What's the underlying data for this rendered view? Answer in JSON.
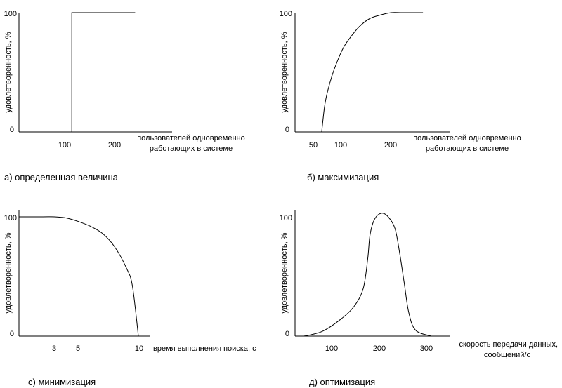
{
  "chart_data": [
    {
      "panel": "a",
      "type": "line",
      "title": "а) определенная величина",
      "xlabel": [
        "пользователей одновременно",
        "работающих в системе"
      ],
      "ylabel": "удовлетворенность, %",
      "xlim": [
        0,
        290
      ],
      "ylim": [
        0,
        100
      ],
      "xticks": [
        100,
        200
      ],
      "yticks": [
        0,
        100
      ],
      "series": [
        {
          "name": "satisfaction",
          "x": [
            100,
            100,
            220
          ],
          "y": [
            0,
            100,
            100
          ]
        }
      ]
    },
    {
      "panel": "b",
      "type": "line",
      "title": "б) максимизация",
      "xlabel": [
        "пользователей одновременно",
        "работающих в системе"
      ],
      "ylabel": "удовлетворенность, %",
      "xlim": [
        0,
        290
      ],
      "ylim": [
        0,
        100
      ],
      "xticks": [
        50,
        100,
        200
      ],
      "yticks": [
        0,
        100
      ],
      "series": [
        {
          "name": "satisfaction",
          "x": [
            50,
            55,
            60,
            70,
            80,
            90,
            100,
            120,
            140,
            160,
            180,
            200,
            220,
            240
          ],
          "y": [
            0,
            20,
            32,
            48,
            60,
            70,
            77,
            88,
            95,
            98,
            100,
            100,
            100,
            100
          ]
        }
      ]
    },
    {
      "panel": "c",
      "type": "line",
      "title": "с) минимизация",
      "xlabel": [
        "время выполнения поиска, с"
      ],
      "ylabel": "удовлетворенность, %",
      "xlim": [
        0,
        11
      ],
      "ylim": [
        0,
        100
      ],
      "xticks": [
        3,
        5,
        10
      ],
      "yticks": [
        0,
        100
      ],
      "series": [
        {
          "name": "satisfaction",
          "x": [
            0,
            2,
            3,
            4,
            5,
            6,
            7,
            8,
            9,
            9.5,
            10
          ],
          "y": [
            100,
            100,
            100,
            99,
            96,
            92,
            86,
            75,
            57,
            42,
            0
          ]
        }
      ]
    },
    {
      "panel": "d",
      "type": "line",
      "title": "д) оптимизация",
      "xlabel": [
        "скорость передачи данных,",
        "сообщений/с"
      ],
      "ylabel": "удовлетворенность, %",
      "xlim": [
        0,
        340
      ],
      "ylim": [
        0,
        100
      ],
      "xticks": [
        100,
        200,
        300
      ],
      "yticks": [
        0,
        100
      ],
      "series": [
        {
          "name": "satisfaction",
          "x": [
            20,
            60,
            100,
            130,
            150,
            160,
            165,
            175,
            190,
            205,
            220,
            230,
            240,
            250,
            265,
            300
          ],
          "y": [
            0,
            4,
            14,
            25,
            40,
            65,
            85,
            98,
            103,
            100,
            90,
            70,
            45,
            20,
            5,
            0
          ]
        }
      ]
    }
  ]
}
